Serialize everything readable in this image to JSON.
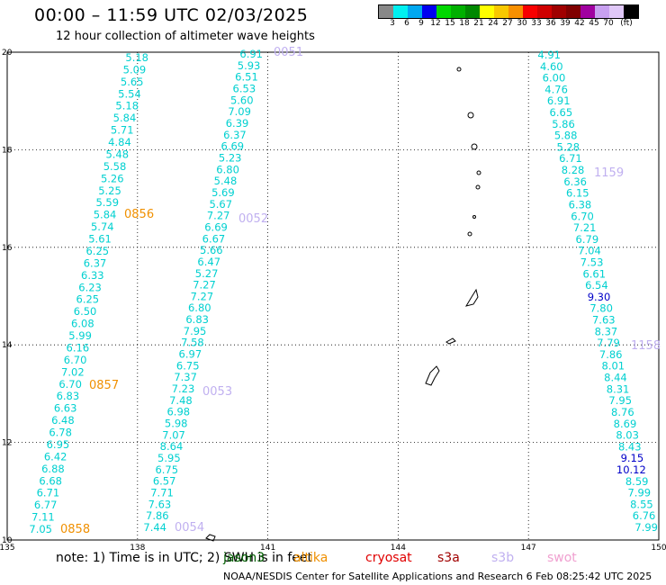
{
  "title": "00:00 – 11:59 UTC 02/03/2025",
  "subtitle": "12 hour collection of altimeter wave heights",
  "scale": {
    "colors": [
      "#888888",
      "#00f0f0",
      "#00a8f0",
      "#0000f0",
      "#00d800",
      "#00b000",
      "#008800",
      "#ffff00",
      "#f8c800",
      "#f89000",
      "#f80000",
      "#d00000",
      "#a00000",
      "#800000",
      "#a000a0",
      "#c8a0f0",
      "#e0c8f8",
      "#000000"
    ],
    "labels": [
      "3",
      "6",
      "9",
      "12",
      "15",
      "18",
      "21",
      "24",
      "27",
      "30",
      "33",
      "36",
      "39",
      "42",
      "45",
      "70",
      "(ft)"
    ]
  },
  "axes": {
    "lon_ticks": [
      "135",
      "138",
      "141",
      "144",
      "147",
      "150"
    ],
    "lat_ticks": [
      "10",
      "12",
      "14",
      "16",
      "18",
      "20"
    ]
  },
  "passes": [
    {
      "label": "0051",
      "color": "#c0b0f0"
    },
    {
      "label": "0052",
      "color": "#c0b0f0"
    },
    {
      "label": "0053",
      "color": "#c0b0f0"
    },
    {
      "label": "0054",
      "color": "#c0b0f0"
    },
    {
      "label": "0856",
      "color": "#f09000"
    },
    {
      "label": "0857",
      "color": "#f09000"
    },
    {
      "label": "0858",
      "color": "#f09000"
    },
    {
      "label": "1159",
      "color": "#c0b0f0"
    },
    {
      "label": "1158",
      "color": "#c0b0f0"
    }
  ],
  "tracks": [
    {
      "name": "track-west",
      "color": "#00d0d0",
      "values": [
        "5.18",
        "5.09",
        "5.65",
        "5.54",
        "5.18",
        "5.84",
        "5.71",
        "4.84",
        "5.48",
        "5.58",
        "5.26",
        "5.25",
        "5.59",
        "5.84",
        "5.74",
        "5.61",
        "6.25",
        "6.37",
        "6.33",
        "6.23",
        "6.25",
        "6.50",
        "6.08",
        "5.99",
        "6.16",
        "6.70",
        "7.02",
        "6.70",
        "6.83",
        "6.63",
        "6.48",
        "6.78",
        "6.95",
        "6.42",
        "6.88",
        "6.68",
        "6.71",
        "6.77",
        "7.11",
        "7.05"
      ]
    },
    {
      "name": "track-middle",
      "color": "#00d0d0",
      "values": [
        "6.91",
        "5.93",
        "6.51",
        "6.53",
        "5.60",
        "7.09",
        "6.39",
        "6.37",
        "6.69",
        "5.23",
        "6.80",
        "5.48",
        "5.69",
        "5.67",
        "7.27",
        "6.69",
        "6.67",
        "5.66",
        "6.47",
        "5.27",
        "7.27",
        "7.27",
        "6.80",
        "6.83",
        "7.95",
        "7.58",
        "6.97",
        "6.75",
        "7.37",
        "7.23",
        "7.48",
        "6.98",
        "5.98",
        "7.07",
        "8.64",
        "5.95",
        "6.75",
        "6.57",
        "7.71",
        "7.63",
        "7.86",
        "7.44"
      ]
    },
    {
      "name": "track-east",
      "color": "#00d0d0",
      "values": [
        "4.91",
        "4.60",
        "6.00",
        "4.76",
        "6.91",
        "6.65",
        "5.86",
        "5.88",
        "5.28",
        "6.71",
        "8.28",
        "6.36",
        "6.15",
        "6.38",
        "6.70",
        "7.21",
        "6.79",
        "7.04",
        "7.53",
        "6.61",
        "6.54",
        "9.30",
        "7.80",
        "7.63",
        "8.37",
        "7.79",
        "7.86",
        "8.01",
        "8.44",
        "8.31",
        "7.95",
        "8.76",
        "8.69",
        "8.03",
        "8.43",
        "9.15",
        "10.12",
        "8.59",
        "7.99",
        "8.55",
        "6.76",
        "7.99"
      ]
    }
  ],
  "notes": {
    "prefix": "note:  1) Time is in UTC;  2) SWH is in feet",
    "sats": [
      {
        "name": "jason3",
        "color": "#006000"
      },
      {
        "name": "altika",
        "color": "#f09000"
      },
      {
        "name": "cryosat",
        "color": "#e00000"
      },
      {
        "name": "s3a",
        "color": "#a00000"
      },
      {
        "name": "s3b",
        "color": "#c0b0f0"
      },
      {
        "name": "swot",
        "color": "#f0a0d0"
      }
    ]
  },
  "footer": "NOAA/NESDIS Center for Satellite Applications and Research     6 Feb 08:25:42 UTC 2025"
}
